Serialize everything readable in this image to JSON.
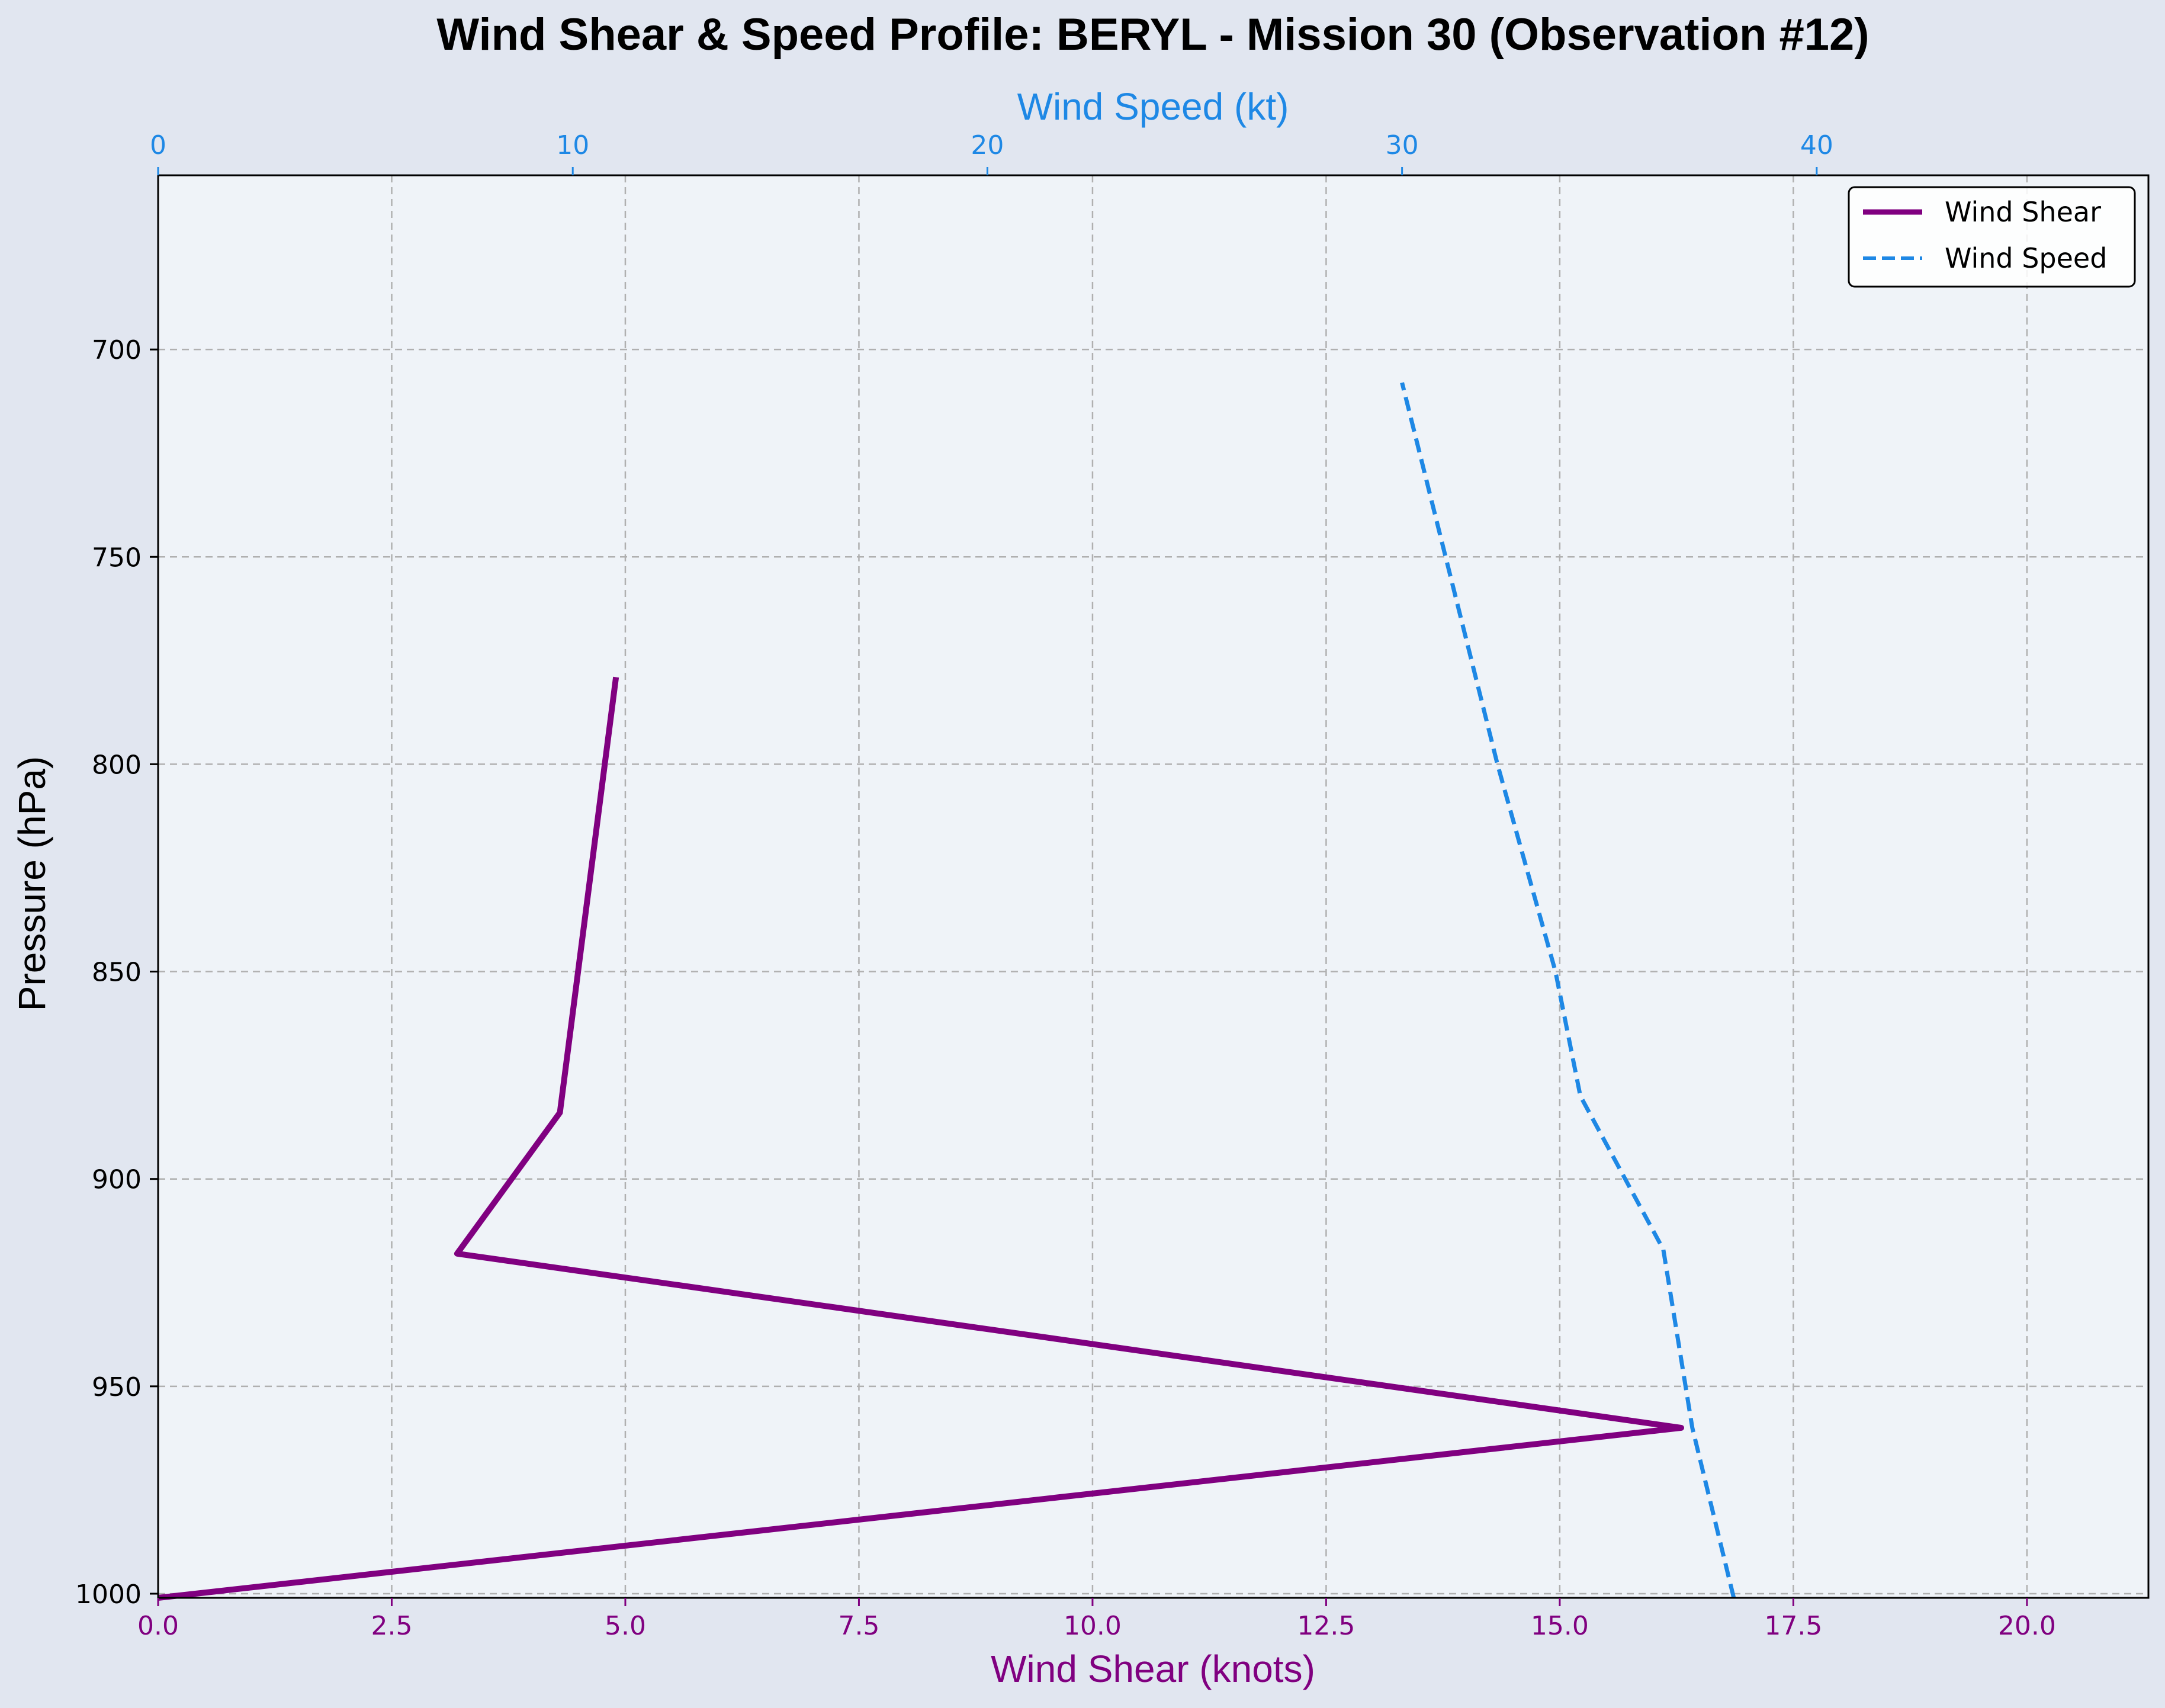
{
  "chart_data": {
    "type": "line",
    "title": "Wind Shear & Speed Profile: BERYL - Mission 30 (Observation #12)",
    "xlabel": "Wind Shear (knots)",
    "x2label": "Wind Speed (kt)",
    "ylabel": "Pressure (hPa)",
    "xlim": [
      0,
      21.3
    ],
    "x2lim": [
      0,
      48
    ],
    "ylim": [
      1001,
      658
    ],
    "y_inverted": true,
    "grid": true,
    "legend_position": "upper right",
    "x_ticks": [
      "0.0",
      "2.5",
      "5.0",
      "7.5",
      "10.0",
      "12.5",
      "15.0",
      "17.5",
      "20.0"
    ],
    "x2_ticks": [
      "0",
      "10",
      "20",
      "30",
      "40"
    ],
    "y_ticks": [
      "700",
      "750",
      "800",
      "850",
      "900",
      "950",
      "1000"
    ],
    "series": [
      {
        "name": "Wind Shear",
        "axis": "bottom",
        "color": "#800080",
        "style": "solid",
        "x": [
          0.0,
          16.3,
          3.2,
          4.3,
          4.9
        ],
        "y": [
          1001,
          960,
          918,
          884,
          779
        ]
      },
      {
        "name": "Wind Speed",
        "axis": "top",
        "color": "#1e88e5",
        "style": "dashed",
        "x": [
          38.0,
          37.0,
          36.3,
          34.3,
          33.7,
          32.3,
          30.0
        ],
        "y": [
          1001,
          960,
          917,
          880,
          850,
          800,
          708
        ]
      }
    ],
    "colors": {
      "figure_bg": "#e1e6f0",
      "plot_bg": "#eff3f8",
      "grid": "#b0b0b0",
      "bottom_axis": "#800080",
      "top_axis": "#1e88e5",
      "left_axis": "#000000"
    }
  }
}
